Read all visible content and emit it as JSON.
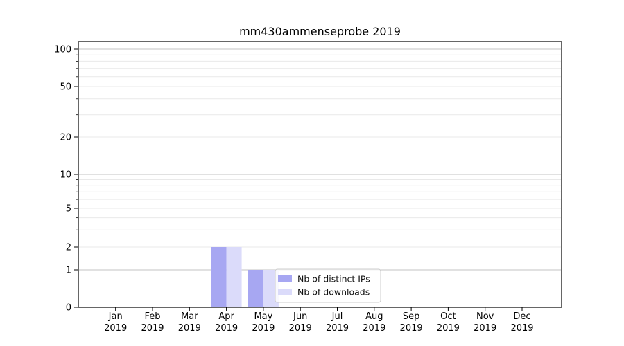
{
  "title": "mm430ammenseprobe 2019",
  "chart_data": {
    "type": "bar",
    "title": "mm430ammenseprobe 2019",
    "categories": [
      {
        "month": "Jan",
        "year": "2019"
      },
      {
        "month": "Feb",
        "year": "2019"
      },
      {
        "month": "Mar",
        "year": "2019"
      },
      {
        "month": "Apr",
        "year": "2019"
      },
      {
        "month": "May",
        "year": "2019"
      },
      {
        "month": "Jun",
        "year": "2019"
      },
      {
        "month": "Jul",
        "year": "2019"
      },
      {
        "month": "Aug",
        "year": "2019"
      },
      {
        "month": "Sep",
        "year": "2019"
      },
      {
        "month": "Oct",
        "year": "2019"
      },
      {
        "month": "Nov",
        "year": "2019"
      },
      {
        "month": "Dec",
        "year": "2019"
      }
    ],
    "series": [
      {
        "name": "Nb of distinct IPs",
        "color": "#a7a7f2",
        "values": [
          0,
          0,
          0,
          2,
          1,
          0,
          0,
          0,
          0,
          0,
          0,
          0
        ]
      },
      {
        "name": "Nb of downloads",
        "color": "#dbdbfa",
        "values": [
          0,
          0,
          0,
          2,
          1,
          0,
          0,
          0,
          0,
          0,
          0,
          0
        ]
      }
    ],
    "y_axis": {
      "scale": "symlog",
      "range": [
        0,
        100
      ],
      "major_ticks": [
        0,
        1,
        2,
        5,
        10,
        20,
        50,
        100
      ],
      "minor_ticks": [
        3,
        4,
        6,
        7,
        8,
        9,
        30,
        40,
        60,
        70,
        80,
        90
      ]
    },
    "legend": {
      "position": "lower center",
      "entries": [
        "Nb of distinct IPs",
        "Nb of downloads"
      ]
    },
    "grid": {
      "enabled": true,
      "decade_line_color": "#c3c3c3",
      "minor_line_color": "#e9e9e9"
    },
    "colors": {
      "spine": "#000000",
      "text": "#000000",
      "legend_border": "#cccccc",
      "legend_background": "rgba(255,255,255,0.8)"
    }
  }
}
